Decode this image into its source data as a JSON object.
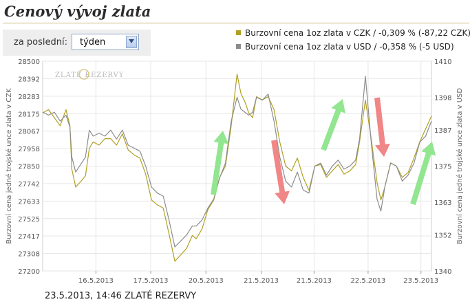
{
  "title": "Cenový vývoj zlata",
  "period": {
    "label": "za poslední:",
    "selected": "týden"
  },
  "legend": [
    {
      "label": "Burzovní cena 1oz zlata v CZK / -0,309 % (-87,22 CZK)",
      "color": "#b0a022"
    },
    {
      "label": "Burzovní cena 1oz zlata v USD / -0,358 % (-5 USD)",
      "color": "#8c8c8c"
    }
  ],
  "watermark": "ZLATÉ REZERVY",
  "footer": "23.5.2013, 14:46 ZLATÉ REZERVY",
  "colors": {
    "up_arrow": "#8ce58a",
    "down_arrow": "#f08080",
    "czk_line": "#b0a022",
    "usd_line": "#8c8c8c"
  },
  "chart_data": {
    "type": "line",
    "ylabel": "Burzovní cena jedné trojské unce zlata v CZK",
    "y2label": "Burzovní cena jedné trojské unce zlata v USD",
    "ylim": [
      27200,
      28500
    ],
    "y2lim": [
      1340,
      1410
    ],
    "y_ticks": [
      "28500",
      "28392",
      "28283",
      "28175",
      "28067",
      "27958",
      "27850",
      "27742",
      "27633",
      "27525",
      "27417",
      "27308",
      "27200"
    ],
    "y2_ticks": [
      "1410",
      "1398",
      "1387",
      "1375",
      "1363",
      "1352",
      "1340"
    ],
    "x_ticks": [
      "16.5.2013",
      "17.5.2013",
      "20.5.2013",
      "21.5.2013",
      "21.5.2013",
      "22.5.2013",
      "23.5.2013"
    ],
    "x_range": [
      0,
      100
    ],
    "x_tick_positions": [
      13.7,
      27.8,
      42.0,
      56.2,
      69.8,
      83.7,
      97.3
    ],
    "grid": true,
    "series": [
      {
        "name": "Burzovní cena 1oz zlata v CZK",
        "axis": "left",
        "x": [
          0,
          1.5,
          3,
          4.5,
          6,
          7,
          7.5,
          8.5,
          10,
          11,
          12,
          13,
          14.5,
          16,
          17.5,
          19,
          20.5,
          22,
          23.5,
          25,
          26.5,
          28,
          29.5,
          31,
          32.5,
          34,
          35.5,
          37,
          38.5,
          39.5,
          41,
          42.5,
          44,
          45.5,
          47,
          48.5,
          50,
          51,
          52,
          53,
          54,
          55,
          56.5,
          58,
          59.5,
          61,
          62.5,
          64,
          65.5,
          67,
          68.5,
          70,
          71.5,
          73,
          74.5,
          76,
          77.5,
          79,
          80.5,
          81.5,
          83,
          84.5,
          86,
          87,
          88,
          89.5,
          91,
          92.5,
          94,
          95.5,
          97,
          98.5,
          100
        ],
        "values": [
          28180,
          28200,
          28150,
          28100,
          28200,
          28100,
          27830,
          27720,
          27760,
          27790,
          27960,
          28000,
          27980,
          28020,
          28020,
          27980,
          28050,
          27950,
          27920,
          27900,
          27800,
          27640,
          27610,
          27590,
          27430,
          27260,
          27300,
          27340,
          27420,
          27400,
          27460,
          27580,
          27640,
          27780,
          27850,
          28100,
          28420,
          28300,
          28250,
          28180,
          28150,
          28280,
          28260,
          28280,
          28200,
          28000,
          27850,
          27820,
          27900,
          27780,
          27700,
          27850,
          27860,
          27780,
          27820,
          27860,
          27800,
          27820,
          27860,
          28000,
          28260,
          28020,
          27750,
          27640,
          27720,
          27870,
          27850,
          27780,
          27810,
          27900,
          28000,
          28080,
          28160
        ]
      },
      {
        "name": "Burzovní cena 1oz zlata v USD",
        "axis": "right",
        "x": [
          0,
          1.5,
          3,
          4.5,
          6,
          7,
          7.5,
          8.5,
          10,
          11,
          12,
          13,
          14.5,
          16,
          17.5,
          19,
          20.5,
          22,
          23.5,
          25,
          26.5,
          28,
          29.5,
          31,
          32.5,
          34,
          35.5,
          37,
          38.5,
          39.5,
          41,
          42.5,
          44,
          45.5,
          47,
          48.5,
          50,
          51,
          52,
          53,
          54,
          55,
          56.5,
          58,
          59.5,
          61,
          62.5,
          64,
          65.5,
          67,
          68.5,
          70,
          71.5,
          73,
          74.5,
          76,
          77.5,
          79,
          80.5,
          81.5,
          83,
          84.5,
          86,
          87,
          88,
          89.5,
          91,
          92.5,
          94,
          95.5,
          97,
          98.5,
          100
        ],
        "values": [
          1393,
          1392,
          1393,
          1390,
          1392,
          1388,
          1378,
          1373,
          1376,
          1378,
          1387,
          1385,
          1386,
          1385,
          1387,
          1384,
          1387,
          1382,
          1381,
          1380,
          1375,
          1368,
          1366,
          1365,
          1357,
          1348,
          1350,
          1352,
          1355,
          1355,
          1357,
          1361,
          1364,
          1371,
          1376,
          1390,
          1398,
          1394,
          1393,
          1392,
          1393,
          1398,
          1397,
          1399,
          1390,
          1378,
          1370,
          1368,
          1373,
          1367,
          1366,
          1375,
          1376,
          1372,
          1375,
          1377,
          1374,
          1375,
          1377,
          1384,
          1405,
          1383,
          1364,
          1360,
          1368,
          1376,
          1375,
          1370,
          1372,
          1376,
          1383,
          1385,
          1390
        ]
      }
    ]
  }
}
